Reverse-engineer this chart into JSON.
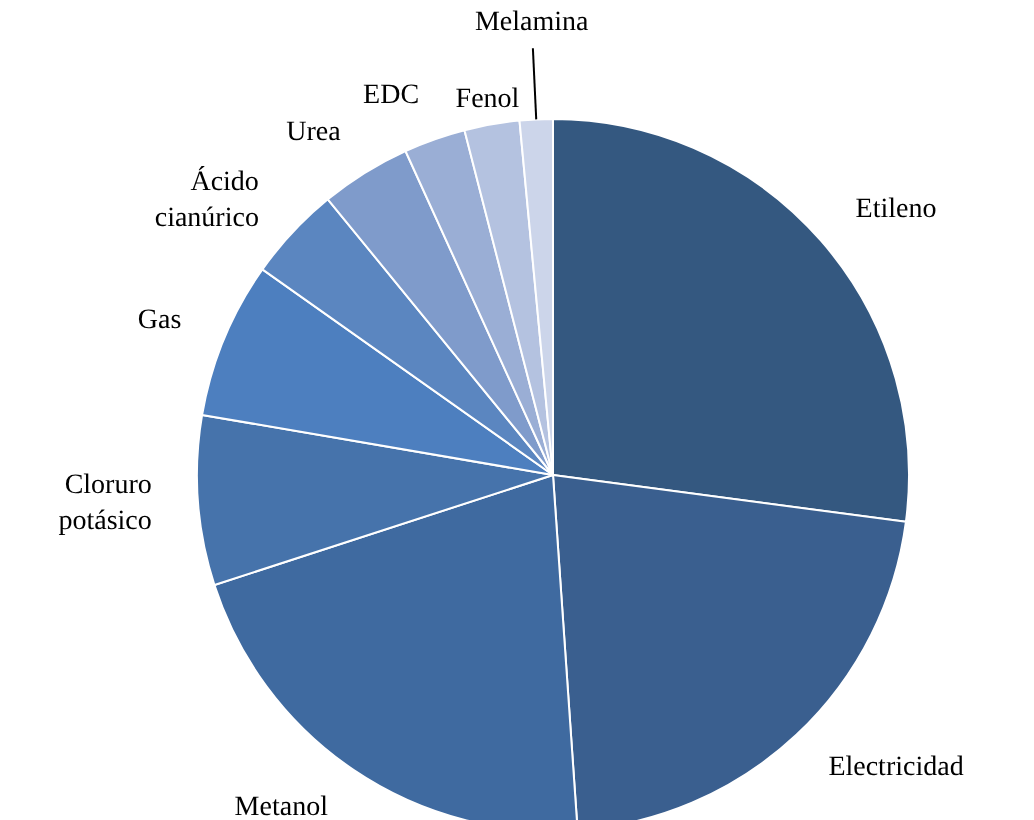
{
  "chart_data": {
    "type": "pie",
    "categories": [
      "Etileno",
      "Electricidad",
      "Metanol",
      "Cloruro potásico",
      "Gas",
      "Ácido cianúrico",
      "Urea",
      "EDC",
      "Fenol",
      "Melamina"
    ],
    "values": [
      27.1,
      21.8,
      21.1,
      7.7,
      7.1,
      4.3,
      4.1,
      2.8,
      2.5,
      1.5
    ],
    "colors": [
      "#345880",
      "#3a5f8f",
      "#3f6aa0",
      "#4673ab",
      "#4d7fbf",
      "#5b86c0",
      "#7f9bcb",
      "#9aaed5",
      "#b4c2e0",
      "#ccd5ea"
    ],
    "legend": false
  }
}
